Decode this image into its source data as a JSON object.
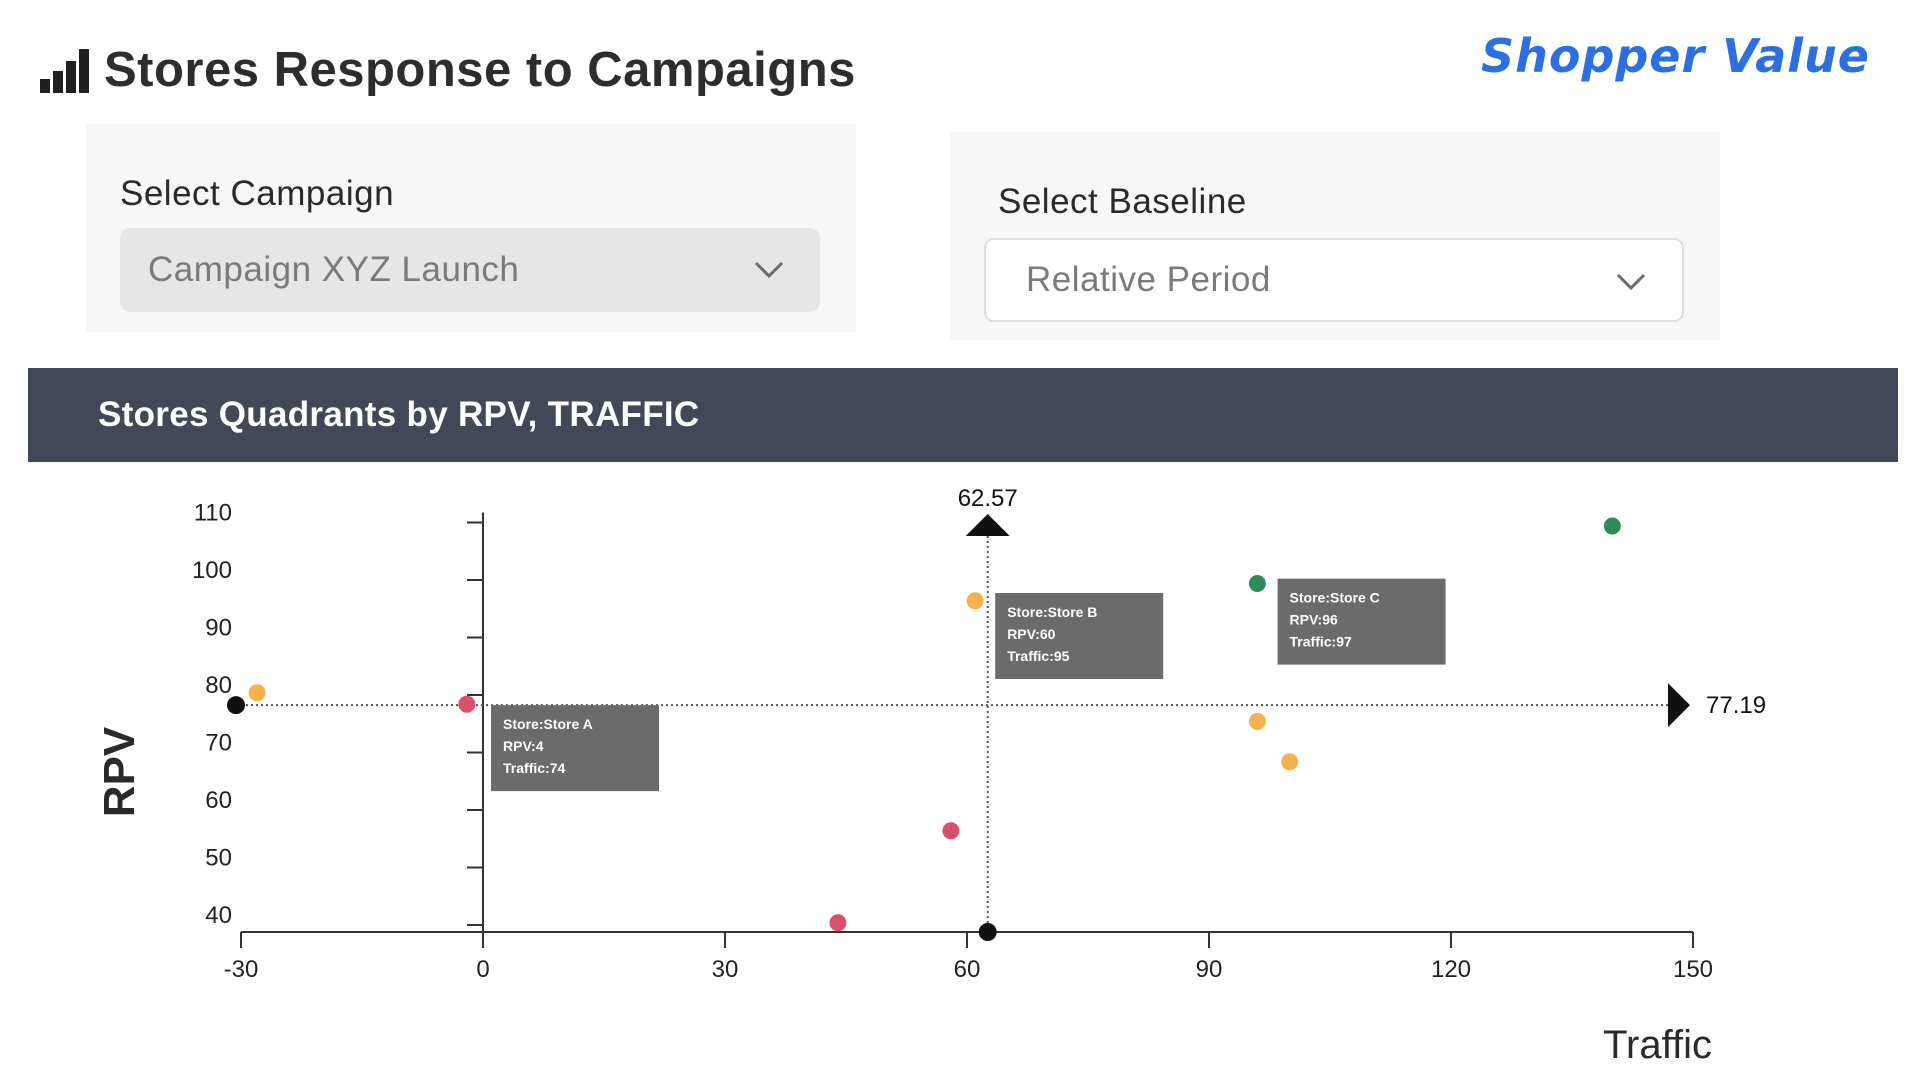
{
  "header": {
    "title": "Stores Response to Campaigns",
    "title_icon": "bar-chart-icon",
    "logo_text": "Shopper Value",
    "brand_color": "#2b6fe0"
  },
  "filters": {
    "campaign": {
      "label": "Select Campaign",
      "value": "Campaign XYZ Launch",
      "icon": "chevron-down-icon"
    },
    "baseline": {
      "label": "Select Baseline",
      "value": "Relative Period",
      "icon": "chevron-down-icon"
    }
  },
  "chart_section": {
    "title": "Stores Quadrants by RPV, TRAFFIC"
  },
  "chart_data": {
    "type": "scatter",
    "xlabel": "Traffic",
    "ylabel": "RPV",
    "xlim": [
      -30,
      150
    ],
    "ylim": [
      37,
      110
    ],
    "x_ticks": [
      -30,
      0,
      30,
      60,
      90,
      120,
      150
    ],
    "y_ticks": [
      40,
      50,
      60,
      70,
      80,
      90,
      100,
      110
    ],
    "grid": false,
    "reference_lines": [
      {
        "axis": "x",
        "value": 62.57,
        "label": "62.57"
      },
      {
        "axis": "y",
        "value": 77.19,
        "label": "77.19"
      }
    ],
    "points": [
      {
        "x": -28,
        "y": 79,
        "color": "#f7b04a"
      },
      {
        "x": -2,
        "y": 77,
        "color": "#d9506c"
      },
      {
        "x": 61,
        "y": 95,
        "color": "#f7b04a"
      },
      {
        "x": 58,
        "y": 55,
        "color": "#d9506c"
      },
      {
        "x": 44,
        "y": 39,
        "color": "#d9506c"
      },
      {
        "x": 96,
        "y": 98,
        "color": "#2e8b57"
      },
      {
        "x": 140,
        "y": 108,
        "color": "#2e8b57"
      },
      {
        "x": 96,
        "y": 74,
        "color": "#f7b04a"
      },
      {
        "x": 100,
        "y": 67,
        "color": "#f7b04a"
      }
    ],
    "tooltips": [
      {
        "lines": [
          "Store:Store A",
          "RPV:4",
          "Traffic:74"
        ],
        "x": 0.5,
        "y": 76.5
      },
      {
        "lines": [
          "Store:Store B",
          "RPV:60",
          "Traffic:95"
        ],
        "x": 63,
        "y": 96
      },
      {
        "lines": [
          "Store:Store C",
          "RPV:96",
          "Traffic:97"
        ],
        "x": 98,
        "y": 98.5
      }
    ],
    "colors": {
      "high": "#2e8b57",
      "mid": "#f7b04a",
      "low": "#d9506c",
      "reference": "#111111",
      "tooltip_bg": "#6b6b6b"
    }
  }
}
